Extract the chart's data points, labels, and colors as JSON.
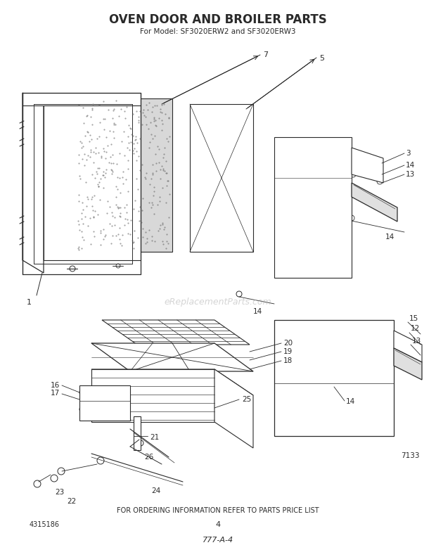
{
  "title": "OVEN DOOR AND BROILER PARTS",
  "subtitle": "For Model: SF3020ERW2 and SF3020ERW3",
  "footer1": "FOR ORDERING INFORMATION REFER TO PARTS PRICE LIST",
  "footer2": "4315186",
  "footer3": "4",
  "footer4": "777-A-4",
  "footer5": "7133",
  "watermark": "eReplacementParts.com",
  "bg_color": "#ffffff",
  "line_color": "#2a2a2a"
}
